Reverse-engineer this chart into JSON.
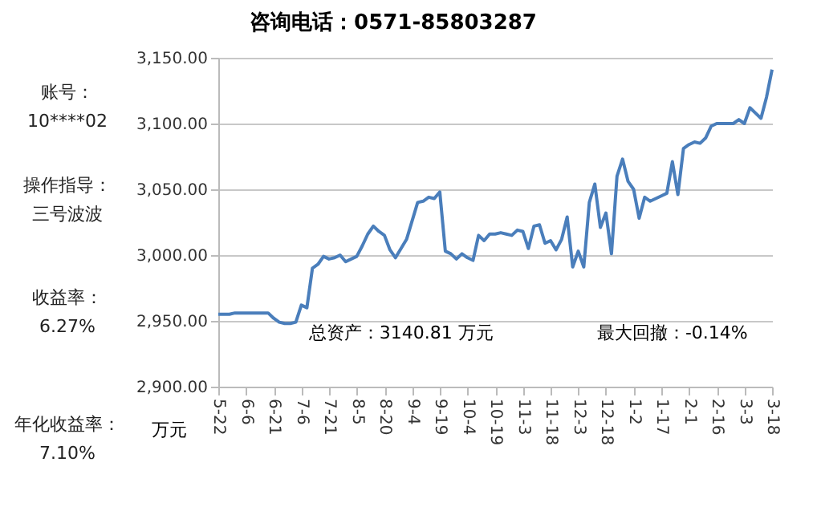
{
  "chart_data": [
    {
      "type": "line",
      "title": "咨询电话：0571-85803287",
      "ylabel": "万元",
      "annotations": [
        "总资产：3140.81 万元",
        "最大回撤：-0.14%"
      ],
      "categories": [
        "5-22",
        null,
        null,
        null,
        null,
        "6-6",
        null,
        null,
        null,
        null,
        "6-21",
        null,
        null,
        null,
        null,
        "7-6",
        null,
        null,
        null,
        null,
        "7-21",
        null,
        null,
        null,
        null,
        "8-5",
        null,
        null,
        null,
        null,
        "8-20",
        null,
        null,
        null,
        null,
        "9-4",
        null,
        null,
        null,
        null,
        "9-19",
        null,
        null,
        null,
        null,
        "10-4",
        null,
        null,
        null,
        null,
        "10-19",
        null,
        null,
        null,
        null,
        "11-3",
        null,
        null,
        null,
        null,
        "11-18",
        null,
        null,
        null,
        null,
        "12-3",
        null,
        null,
        null,
        null,
        "12-18",
        null,
        null,
        null,
        null,
        "1-2",
        null,
        null,
        null,
        null,
        "1-17",
        null,
        null,
        null,
        null,
        "2-1",
        null,
        null,
        null,
        null,
        "2-16",
        null,
        null,
        null,
        null,
        "3-3",
        null,
        null,
        null,
        null,
        "3-18"
      ],
      "series": [
        {
          "color": "#4a7ebb",
          "values": [
            2955,
            2955,
            2955,
            2956,
            2956,
            2956,
            2956,
            2956,
            2956,
            2956,
            2952,
            2949,
            2948,
            2948,
            2949,
            2962,
            2960,
            2990,
            2993,
            2999,
            2997,
            2998,
            3000,
            2995,
            2997,
            2999,
            3007,
            3016,
            3022,
            3018,
            3015,
            3004,
            2998,
            3005,
            3012,
            3026,
            3040,
            3041,
            3044,
            3043,
            3048,
            3003,
            3001,
            2997,
            3001,
            2998,
            2996,
            3015,
            3011,
            3016,
            3016,
            3017,
            3016,
            3015,
            3019,
            3018,
            3005,
            3022,
            3023,
            3009,
            3011,
            3004,
            3012,
            3029,
            2991,
            3003,
            2991,
            3040,
            3054,
            3021,
            3032,
            3001,
            3060,
            3073,
            3056,
            3050,
            3028,
            3044,
            3041,
            3043,
            3045,
            3047,
            3071,
            3046,
            3081,
            3084,
            3086,
            3085,
            3089,
            3098,
            3100,
            3100,
            3100,
            3100,
            3103,
            3100,
            3112,
            3108,
            3104,
            3120,
            3141
          ]
        }
      ],
      "ylim": [
        2900,
        3150
      ],
      "yticks": [
        {
          "value": 2900,
          "label": "2,900.00"
        },
        {
          "value": 2950,
          "label": "2,950.00"
        },
        {
          "value": 3000,
          "label": "3,000.00"
        },
        {
          "value": 3050,
          "label": "3,050.00"
        },
        {
          "value": 3100,
          "label": "3,100.00"
        },
        {
          "value": 3150,
          "label": "3,150.00"
        }
      ],
      "grid": "y",
      "legend": false,
      "marker": "none",
      "line_style": "solid"
    },
    {
      "type": "other",
      "annotations": [
        "账号：10****02",
        "操作指导：三号波波",
        "收益率：6.27%",
        "年化收益率：7.10%"
      ]
    }
  ]
}
